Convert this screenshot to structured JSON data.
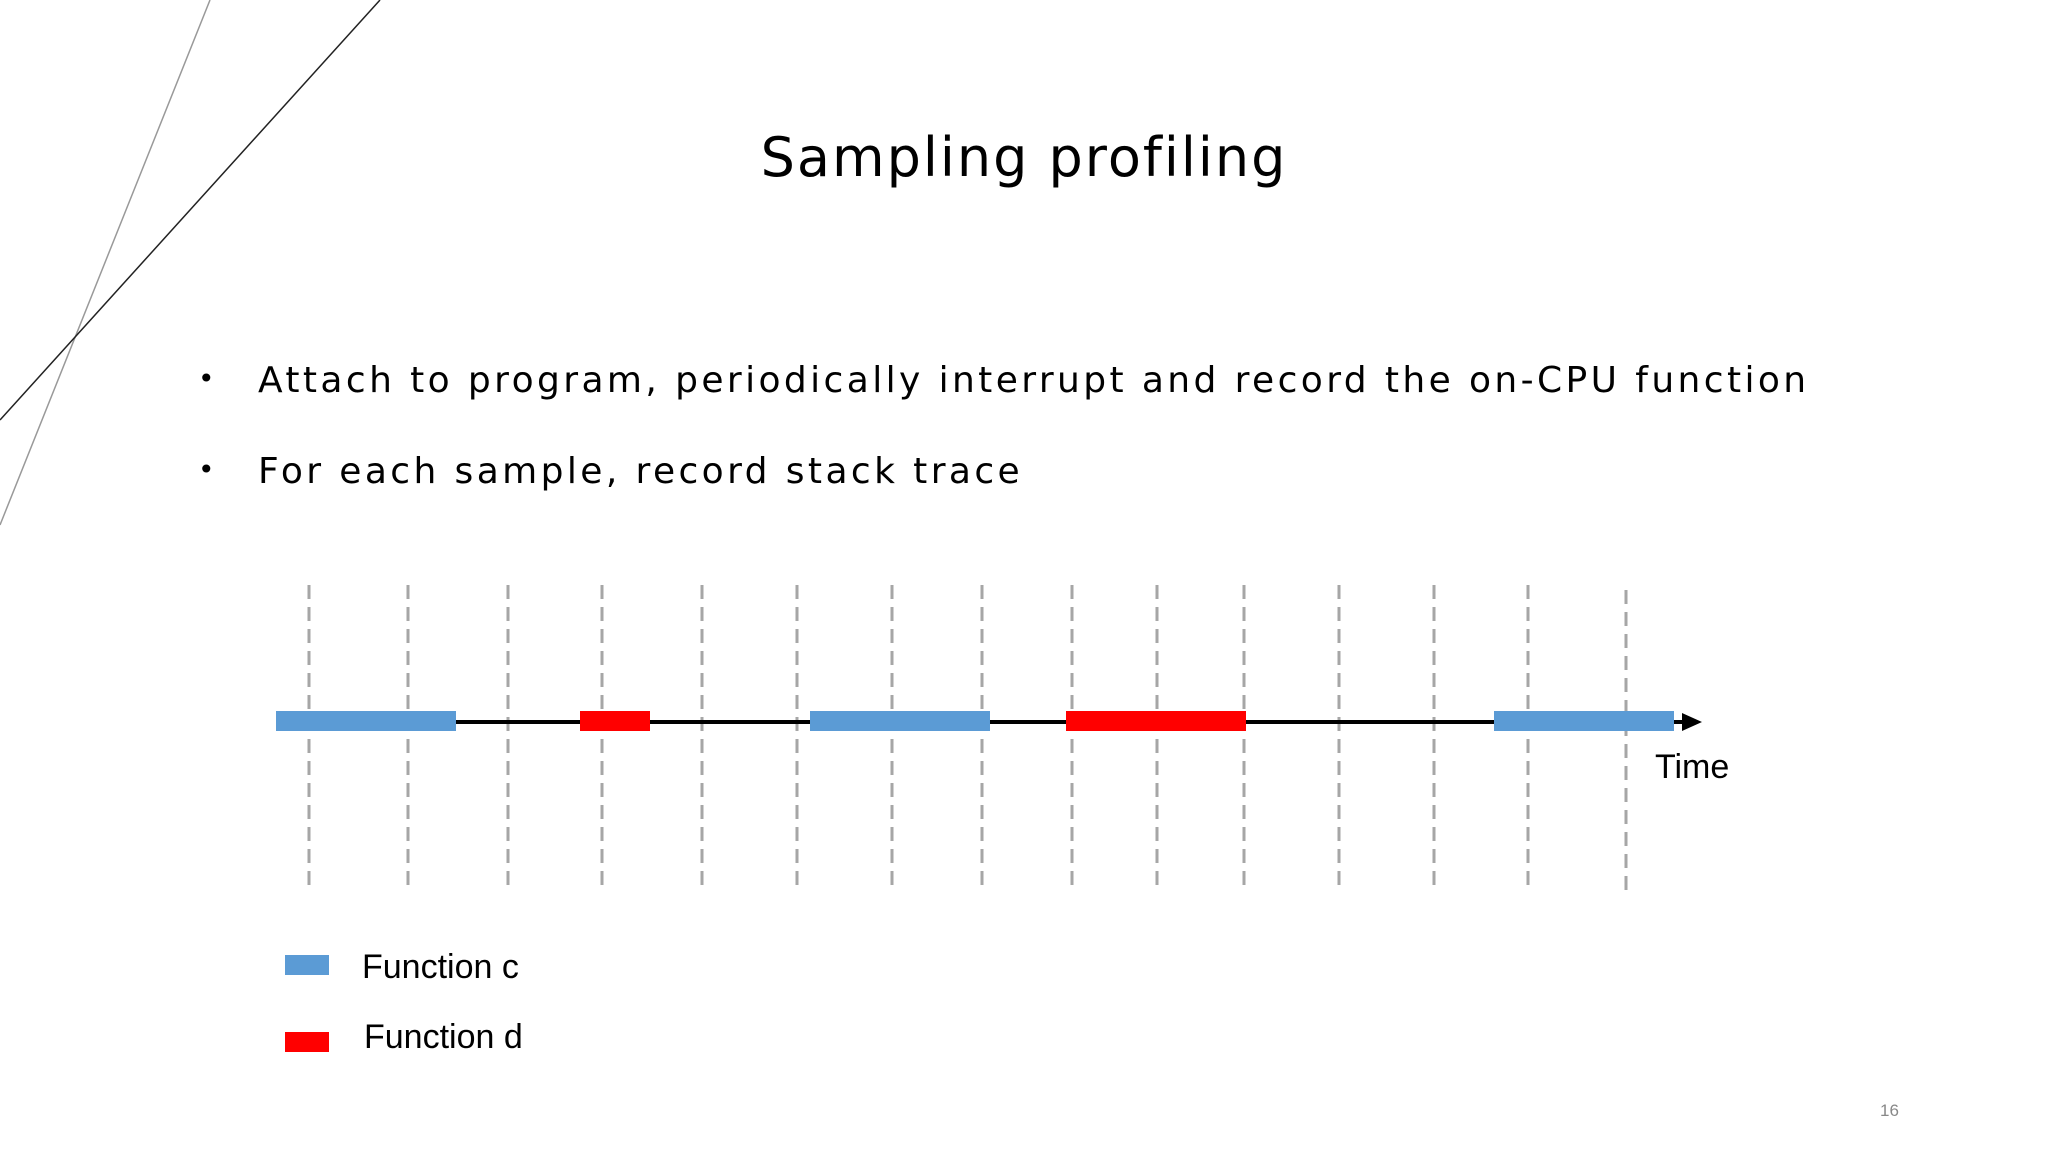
{
  "title": "Sampling profiling",
  "bullets": [
    "Attach to program, periodically interrupt and record the on-CPU function",
    "For each sample, record stack trace"
  ],
  "diagram": {
    "axis_label": "Time",
    "legend": [
      {
        "label": "Function c",
        "color": "#5b9bd5"
      },
      {
        "label": "Function d",
        "color": "#ff0000"
      }
    ]
  },
  "page_number": "16",
  "colors": {
    "function_c": "#5b9bd5",
    "function_d": "#ff0000",
    "sample_line": "#a6a6a6",
    "axis": "#000000"
  }
}
